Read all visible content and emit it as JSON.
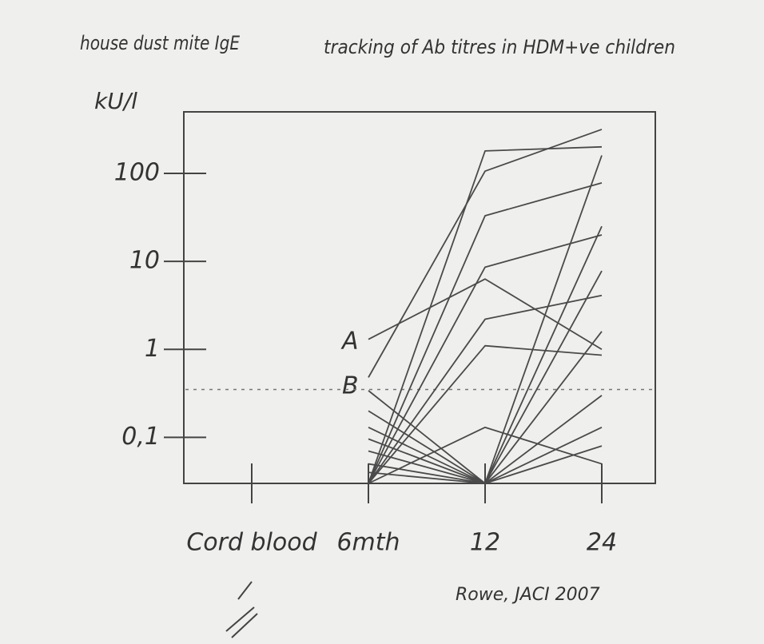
{
  "chart_data": {
    "type": "line",
    "title": "tracking of Ab titres in HDM+ve children",
    "subtitle": "house dust mite IgE",
    "ylabel": "kU/l",
    "source": "Rowe, JACI 2007",
    "annotations": [
      "A",
      "B"
    ],
    "categories": [
      "Cord blood",
      "6mth",
      "12",
      "24"
    ],
    "log_y": true,
    "ylim": [
      0.03,
      500
    ],
    "yticks": [
      {
        "value": 0.1,
        "label": "0,1"
      },
      1,
      10,
      100
    ],
    "reference_line": 0.35,
    "color": "#4a4a4a",
    "series": [
      {
        "values": [
          null,
          1.3,
          6.3,
          1
        ]
      },
      {
        "values": [
          null,
          0.48,
          106,
          316
        ]
      },
      {
        "values": [
          null,
          0.03,
          180,
          200
        ]
      },
      {
        "values": [
          null,
          0.03,
          33,
          78
        ]
      },
      {
        "values": [
          null,
          0.03,
          8.6,
          20
        ]
      },
      {
        "values": [
          null,
          0.03,
          2.2,
          4.1
        ]
      },
      {
        "values": [
          null,
          0.03,
          1.1,
          0.86
        ]
      },
      {
        "values": [
          null,
          0.03,
          0.13,
          0.05
        ]
      },
      {
        "values": [
          null,
          0.34,
          0.03,
          160
        ]
      },
      {
        "values": [
          null,
          0.2,
          0.03,
          25
        ]
      },
      {
        "values": [
          null,
          0.13,
          0.03,
          7.8
        ]
      },
      {
        "values": [
          null,
          0.096,
          0.03,
          1.6
        ]
      },
      {
        "values": [
          null,
          0.07,
          0.03,
          0.3
        ]
      },
      {
        "values": [
          null,
          0.05,
          0.03,
          0.13
        ]
      },
      {
        "values": [
          null,
          0.04,
          0.03,
          0.08
        ]
      }
    ]
  }
}
